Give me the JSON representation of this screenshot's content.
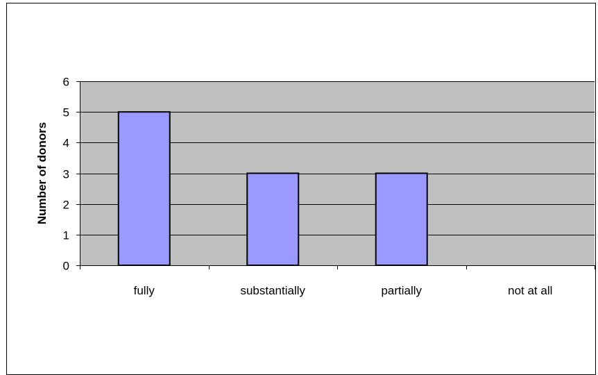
{
  "chart_data": {
    "type": "bar",
    "categories": [
      "fully",
      "substantially",
      "partially",
      "not at all"
    ],
    "values": [
      5,
      3,
      3,
      0
    ],
    "title": "",
    "xlabel": "",
    "ylabel": "Number of donors",
    "ylim": [
      0,
      6
    ],
    "yticks": [
      "0",
      "1",
      "2",
      "3",
      "4",
      "5",
      "6"
    ],
    "grid": true,
    "legend": "none",
    "colors": {
      "plot_background": "#c0c0c0",
      "bar_fill": "#9999ff",
      "bar_stroke": "#000000",
      "gridline": "#000000",
      "axis": "#000000"
    }
  }
}
